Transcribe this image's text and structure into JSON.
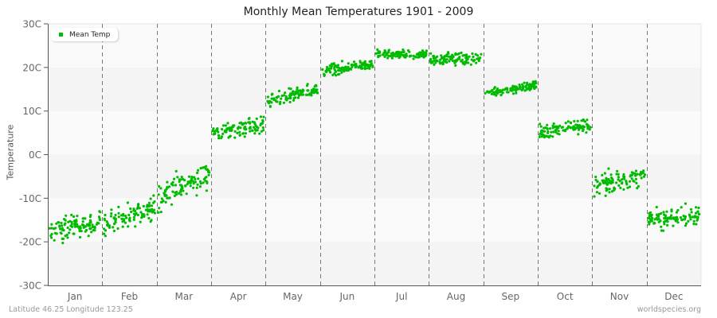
{
  "header": {
    "title": "Monthly Mean Temperatures 1901 - 2009"
  },
  "footer": {
    "location": "Latitude 46.25 Longitude 123.25",
    "source": "worldspecies.org"
  },
  "legend": {
    "label": "Mean Temp",
    "color": "#00bb00"
  },
  "chart_data": {
    "type": "scatter",
    "title": "Monthly Mean Temperatures 1901 - 2009",
    "xlabel": "",
    "ylabel": "Temperature",
    "ylim": [
      -30,
      30
    ],
    "yticks": [
      "30C",
      "20C",
      "10C",
      "0C",
      "-10C",
      "-20C",
      "-30C"
    ],
    "categories": [
      "Jan",
      "Feb",
      "Mar",
      "Apr",
      "May",
      "Jun",
      "Jul",
      "Aug",
      "Sep",
      "Oct",
      "Nov",
      "Dec"
    ],
    "series": [
      {
        "name": "Mean Temp",
        "color": "#00bb00",
        "years": "1901-2009",
        "month_ranges": [
          {
            "month": "Jan",
            "start_mean": -18,
            "end_mean": -15,
            "min": -25,
            "max": -13
          },
          {
            "month": "Feb",
            "start_mean": -16,
            "end_mean": -12,
            "min": -20,
            "max": -8
          },
          {
            "month": "Mar",
            "start_mean": -10,
            "end_mean": -4,
            "min": -14,
            "max": 0
          },
          {
            "month": "Apr",
            "start_mean": 5,
            "end_mean": 7,
            "min": 1,
            "max": 10
          },
          {
            "month": "May",
            "start_mean": 12,
            "end_mean": 15,
            "min": 10,
            "max": 17
          },
          {
            "month": "Jun",
            "start_mean": 19,
            "end_mean": 21,
            "min": 17,
            "max": 23
          },
          {
            "month": "Jul",
            "start_mean": 23,
            "end_mean": 23,
            "min": 21,
            "max": 25
          },
          {
            "month": "Aug",
            "start_mean": 22,
            "end_mean": 22,
            "min": 18,
            "max": 24
          },
          {
            "month": "Sep",
            "start_mean": 14,
            "end_mean": 16,
            "min": 12,
            "max": 17
          },
          {
            "month": "Oct",
            "start_mean": 5,
            "end_mean": 7,
            "min": 1,
            "max": 9
          },
          {
            "month": "Nov",
            "start_mean": -7,
            "end_mean": -5,
            "min": -12,
            "max": -2
          },
          {
            "month": "Dec",
            "start_mean": -15,
            "end_mean": -14,
            "min": -19,
            "max": -9
          }
        ]
      }
    ],
    "grid": {
      "horizontal_bands": true,
      "vertical_dashed_month_dividers": true
    },
    "legend_position": "top-left inside"
  }
}
